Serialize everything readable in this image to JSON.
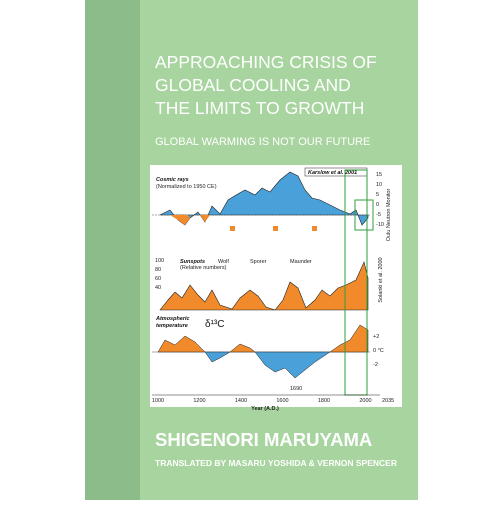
{
  "cover": {
    "title": [
      "APPROACHING CRISIS OF",
      "GLOBAL COOLING AND",
      "THE LIMITS TO GROWTH"
    ],
    "subtitle": "GLOBAL WARMING IS NOT OUR FUTURE",
    "author": "SHIGENORI MARUYAMA",
    "translators": "TRANSLATED BY MASARU YOSHIDA & VERNON SPENCER",
    "figure": {
      "panel1_label": "Cosmic rays",
      "panel1_note": "(Normalized to 1950 CE)",
      "panel1_source": "Karslow et al. 2001",
      "panel1_axis": "Oulu Neutron Monitor",
      "panel1_ticks": [
        "15",
        "10",
        "5",
        "0",
        "-5",
        "-10"
      ],
      "panel2_label": "Sunspots",
      "panel2_note": "(Relative numbers)",
      "panel2_minima": [
        "Wolf",
        "Sporer",
        "Maunder"
      ],
      "panel2_ticks": [
        "100",
        "80",
        "60",
        "40"
      ],
      "panel2_source": "Solanki et al. 2000",
      "panel3_label": [
        "Atmospheric",
        "temperature"
      ],
      "panel3_symbol": "δ¹³C",
      "panel3_ticks": [
        "+2",
        "0 °C",
        "-2"
      ],
      "panel3_year": "1690",
      "x_ticks": [
        "1000",
        "1200",
        "1400",
        "1600",
        "1800",
        "2000"
      ],
      "x_end": "2035",
      "x_label": "Year (A.D.)"
    }
  }
}
